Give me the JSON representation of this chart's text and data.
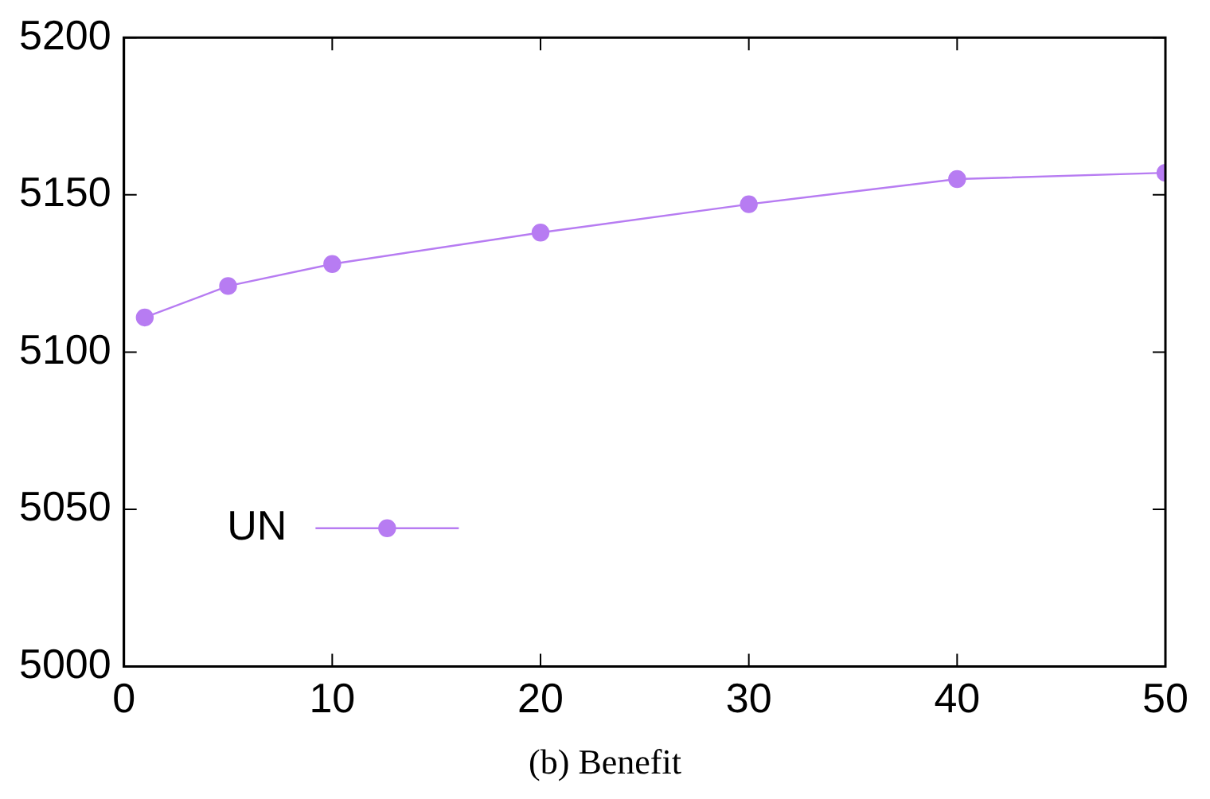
{
  "chart_data": {
    "type": "line",
    "x": [
      1,
      5,
      10,
      20,
      30,
      40,
      50
    ],
    "series": [
      {
        "name": "UN",
        "color": "#b77cf2",
        "values": [
          5111,
          5121,
          5128,
          5138,
          5147,
          5155,
          5157
        ]
      }
    ],
    "xlim": [
      0,
      50
    ],
    "xticks": [
      0,
      10,
      20,
      30,
      40,
      50
    ],
    "ylim": [
      5000,
      5200
    ],
    "yticks": [
      5000,
      5050,
      5100,
      5150,
      5200
    ],
    "grid": false,
    "legend": "left",
    "marker": "circle",
    "line_style": "solid",
    "annotations": [
      "(b) Benefit"
    ]
  }
}
